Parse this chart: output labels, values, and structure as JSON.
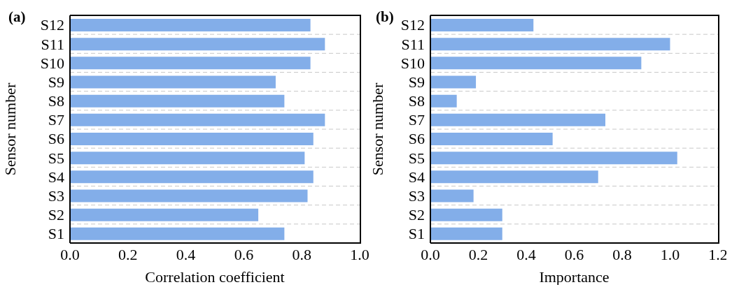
{
  "chart_data": [
    {
      "type": "bar",
      "orientation": "horizontal",
      "title": "(a)",
      "xlabel": "Correlation coefficient",
      "ylabel": "Sensor number",
      "categories": [
        "S12",
        "S11",
        "S10",
        "S9",
        "S8",
        "S7",
        "S6",
        "S5",
        "S4",
        "S3",
        "S2",
        "S1"
      ],
      "values": [
        0.83,
        0.88,
        0.83,
        0.71,
        0.74,
        0.88,
        0.84,
        0.81,
        0.84,
        0.82,
        0.65,
        0.74
      ],
      "color": "#83aee9",
      "xlim": [
        0,
        1
      ],
      "xticks": [
        {
          "value": 0,
          "label": "0.0"
        },
        {
          "value": 0.2,
          "label": "0.2"
        },
        {
          "value": 0.4,
          "label": "0.4"
        },
        {
          "value": 0.6,
          "label": "0.6"
        },
        {
          "value": 0.8,
          "label": "0.8"
        },
        {
          "value": 1,
          "label": "1.0"
        }
      ],
      "grid": "y"
    },
    {
      "type": "bar",
      "orientation": "horizontal",
      "title": "(b)",
      "xlabel": "Importance",
      "ylabel": "Sensor number",
      "categories": [
        "S12",
        "S11",
        "S10",
        "S9",
        "S8",
        "S7",
        "S6",
        "S5",
        "S4",
        "S3",
        "S2",
        "S1"
      ],
      "values": [
        0.43,
        1.0,
        0.88,
        0.19,
        0.11,
        0.73,
        0.51,
        1.03,
        0.7,
        0.18,
        0.3,
        0.3
      ],
      "color": "#83aee9",
      "xlim": [
        0,
        1.2
      ],
      "xticks": [
        {
          "value": 0,
          "label": "0.0"
        },
        {
          "value": 0.2,
          "label": "0.2"
        },
        {
          "value": 0.4,
          "label": "0.4"
        },
        {
          "value": 0.6,
          "label": "0.6"
        },
        {
          "value": 0.8,
          "label": "0.8"
        },
        {
          "value": 1,
          "label": "1.0"
        },
        {
          "value": 1.2,
          "label": "1.2"
        }
      ],
      "grid": "y"
    }
  ]
}
